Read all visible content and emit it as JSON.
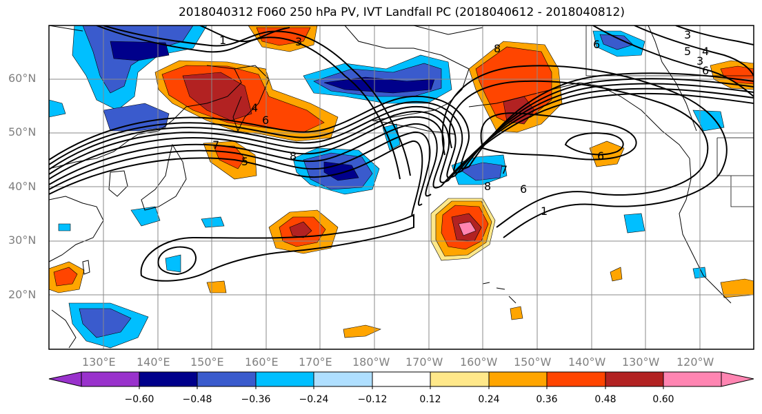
{
  "title": "2018040312 F060 250 hPa PV, IVT Landfall PC (2018040612 - 2018040812)",
  "lat_labels": [
    "60°N",
    "50°N",
    "40°N",
    "30°N",
    "20°N"
  ],
  "lon_labels": [
    "130°E",
    "140°E",
    "150°E",
    "160°E",
    "170°E",
    "180°W",
    "170°W",
    "160°W",
    "150°W",
    "140°W",
    "130°W",
    "120°W"
  ],
  "contour_labels": [
    "1",
    "3",
    "4",
    "6",
    "7",
    "5",
    "8",
    "8",
    "6",
    "3",
    "4",
    "6",
    "7",
    "8",
    "6",
    "1",
    "6",
    "5",
    "3"
  ],
  "colorbar": {
    "ticks": [
      "−0.60",
      "−0.48",
      "−0.36",
      "−0.24",
      "−0.12",
      "0.12",
      "0.24",
      "0.36",
      "0.48",
      "0.60"
    ],
    "colors": [
      "#9932cc",
      "#00008b",
      "#3a5bcd",
      "#00bfff",
      "#afdfff",
      "#ffffff",
      "#ffe88a",
      "#ffa500",
      "#ff4500",
      "#b22222",
      "#ff85b2"
    ]
  }
}
